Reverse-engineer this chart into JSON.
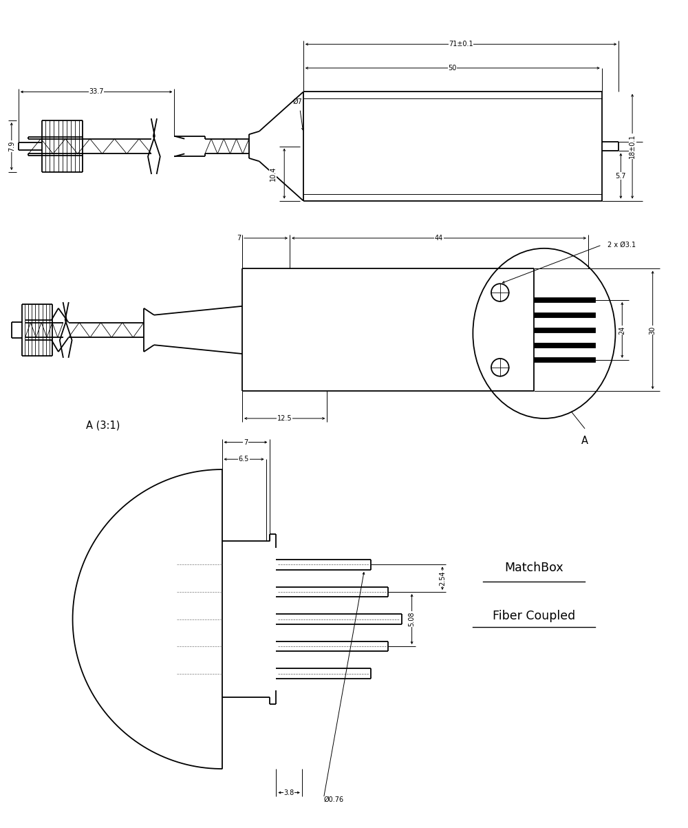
{
  "bg_color": "#ffffff",
  "line_color": "#000000",
  "fig_width": 10.0,
  "fig_height": 12.03,
  "dims_v1": {
    "71_pm_0.1": "71±0.1",
    "50": "50",
    "33.7": "33.7",
    "phi7": "Ø7",
    "10.4": "10.4",
    "7.9": "7.9",
    "18_pm_0.1": "18±0.1",
    "5.7": "5.7"
  },
  "dims_v2": {
    "44": "44",
    "7": "7",
    "2xphi3.1": "2 x Ø3.1",
    "12.5": "12.5",
    "24": "24",
    "30": "30"
  },
  "dims_v3": {
    "7": "7",
    "6.5": "6.5",
    "5.08": "5.08",
    "2.54": "2.54",
    "3.8": "3.8",
    "phi0.76": "Ø0.76"
  },
  "label_A31": "A (3:1)",
  "label_A": "A",
  "matchbox_line1": "MatchBox",
  "matchbox_line2": "Fiber Coupled"
}
